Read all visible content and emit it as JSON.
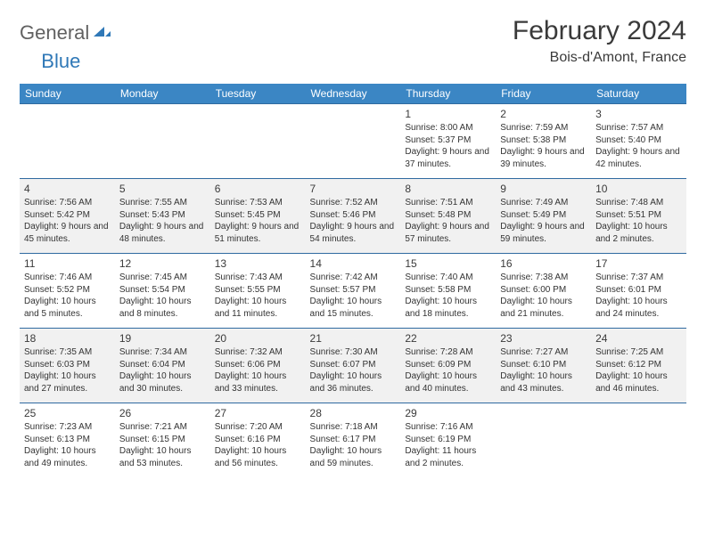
{
  "logo": {
    "part1": "General",
    "part2": "Blue"
  },
  "title": "February 2024",
  "location": "Bois-d'Amont, France",
  "colors": {
    "header_bg": "#3b86c4",
    "header_text": "#ffffff",
    "row_alt_bg": "#f1f1f1",
    "row_border": "#2f6aa0",
    "logo_gray": "#616161",
    "logo_blue": "#2f78b7"
  },
  "typography": {
    "title_fontsize": 30,
    "location_fontsize": 16,
    "header_fontsize": 12,
    "cell_fontsize": 10,
    "daynum_fontsize": 12
  },
  "day_headers": [
    "Sunday",
    "Monday",
    "Tuesday",
    "Wednesday",
    "Thursday",
    "Friday",
    "Saturday"
  ],
  "weeks": [
    {
      "alt": false,
      "days": [
        null,
        null,
        null,
        null,
        {
          "n": "1",
          "sunrise": "8:00 AM",
          "sunset": "5:37 PM",
          "daylight": "9 hours and 37 minutes."
        },
        {
          "n": "2",
          "sunrise": "7:59 AM",
          "sunset": "5:38 PM",
          "daylight": "9 hours and 39 minutes."
        },
        {
          "n": "3",
          "sunrise": "7:57 AM",
          "sunset": "5:40 PM",
          "daylight": "9 hours and 42 minutes."
        }
      ]
    },
    {
      "alt": true,
      "days": [
        {
          "n": "4",
          "sunrise": "7:56 AM",
          "sunset": "5:42 PM",
          "daylight": "9 hours and 45 minutes."
        },
        {
          "n": "5",
          "sunrise": "7:55 AM",
          "sunset": "5:43 PM",
          "daylight": "9 hours and 48 minutes."
        },
        {
          "n": "6",
          "sunrise": "7:53 AM",
          "sunset": "5:45 PM",
          "daylight": "9 hours and 51 minutes."
        },
        {
          "n": "7",
          "sunrise": "7:52 AM",
          "sunset": "5:46 PM",
          "daylight": "9 hours and 54 minutes."
        },
        {
          "n": "8",
          "sunrise": "7:51 AM",
          "sunset": "5:48 PM",
          "daylight": "9 hours and 57 minutes."
        },
        {
          "n": "9",
          "sunrise": "7:49 AM",
          "sunset": "5:49 PM",
          "daylight": "9 hours and 59 minutes."
        },
        {
          "n": "10",
          "sunrise": "7:48 AM",
          "sunset": "5:51 PM",
          "daylight": "10 hours and 2 minutes."
        }
      ]
    },
    {
      "alt": false,
      "days": [
        {
          "n": "11",
          "sunrise": "7:46 AM",
          "sunset": "5:52 PM",
          "daylight": "10 hours and 5 minutes."
        },
        {
          "n": "12",
          "sunrise": "7:45 AM",
          "sunset": "5:54 PM",
          "daylight": "10 hours and 8 minutes."
        },
        {
          "n": "13",
          "sunrise": "7:43 AM",
          "sunset": "5:55 PM",
          "daylight": "10 hours and 11 minutes."
        },
        {
          "n": "14",
          "sunrise": "7:42 AM",
          "sunset": "5:57 PM",
          "daylight": "10 hours and 15 minutes."
        },
        {
          "n": "15",
          "sunrise": "7:40 AM",
          "sunset": "5:58 PM",
          "daylight": "10 hours and 18 minutes."
        },
        {
          "n": "16",
          "sunrise": "7:38 AM",
          "sunset": "6:00 PM",
          "daylight": "10 hours and 21 minutes."
        },
        {
          "n": "17",
          "sunrise": "7:37 AM",
          "sunset": "6:01 PM",
          "daylight": "10 hours and 24 minutes."
        }
      ]
    },
    {
      "alt": true,
      "days": [
        {
          "n": "18",
          "sunrise": "7:35 AM",
          "sunset": "6:03 PM",
          "daylight": "10 hours and 27 minutes."
        },
        {
          "n": "19",
          "sunrise": "7:34 AM",
          "sunset": "6:04 PM",
          "daylight": "10 hours and 30 minutes."
        },
        {
          "n": "20",
          "sunrise": "7:32 AM",
          "sunset": "6:06 PM",
          "daylight": "10 hours and 33 minutes."
        },
        {
          "n": "21",
          "sunrise": "7:30 AM",
          "sunset": "6:07 PM",
          "daylight": "10 hours and 36 minutes."
        },
        {
          "n": "22",
          "sunrise": "7:28 AM",
          "sunset": "6:09 PM",
          "daylight": "10 hours and 40 minutes."
        },
        {
          "n": "23",
          "sunrise": "7:27 AM",
          "sunset": "6:10 PM",
          "daylight": "10 hours and 43 minutes."
        },
        {
          "n": "24",
          "sunrise": "7:25 AM",
          "sunset": "6:12 PM",
          "daylight": "10 hours and 46 minutes."
        }
      ]
    },
    {
      "alt": false,
      "days": [
        {
          "n": "25",
          "sunrise": "7:23 AM",
          "sunset": "6:13 PM",
          "daylight": "10 hours and 49 minutes."
        },
        {
          "n": "26",
          "sunrise": "7:21 AM",
          "sunset": "6:15 PM",
          "daylight": "10 hours and 53 minutes."
        },
        {
          "n": "27",
          "sunrise": "7:20 AM",
          "sunset": "6:16 PM",
          "daylight": "10 hours and 56 minutes."
        },
        {
          "n": "28",
          "sunrise": "7:18 AM",
          "sunset": "6:17 PM",
          "daylight": "10 hours and 59 minutes."
        },
        {
          "n": "29",
          "sunrise": "7:16 AM",
          "sunset": "6:19 PM",
          "daylight": "11 hours and 2 minutes."
        },
        null,
        null
      ]
    }
  ]
}
